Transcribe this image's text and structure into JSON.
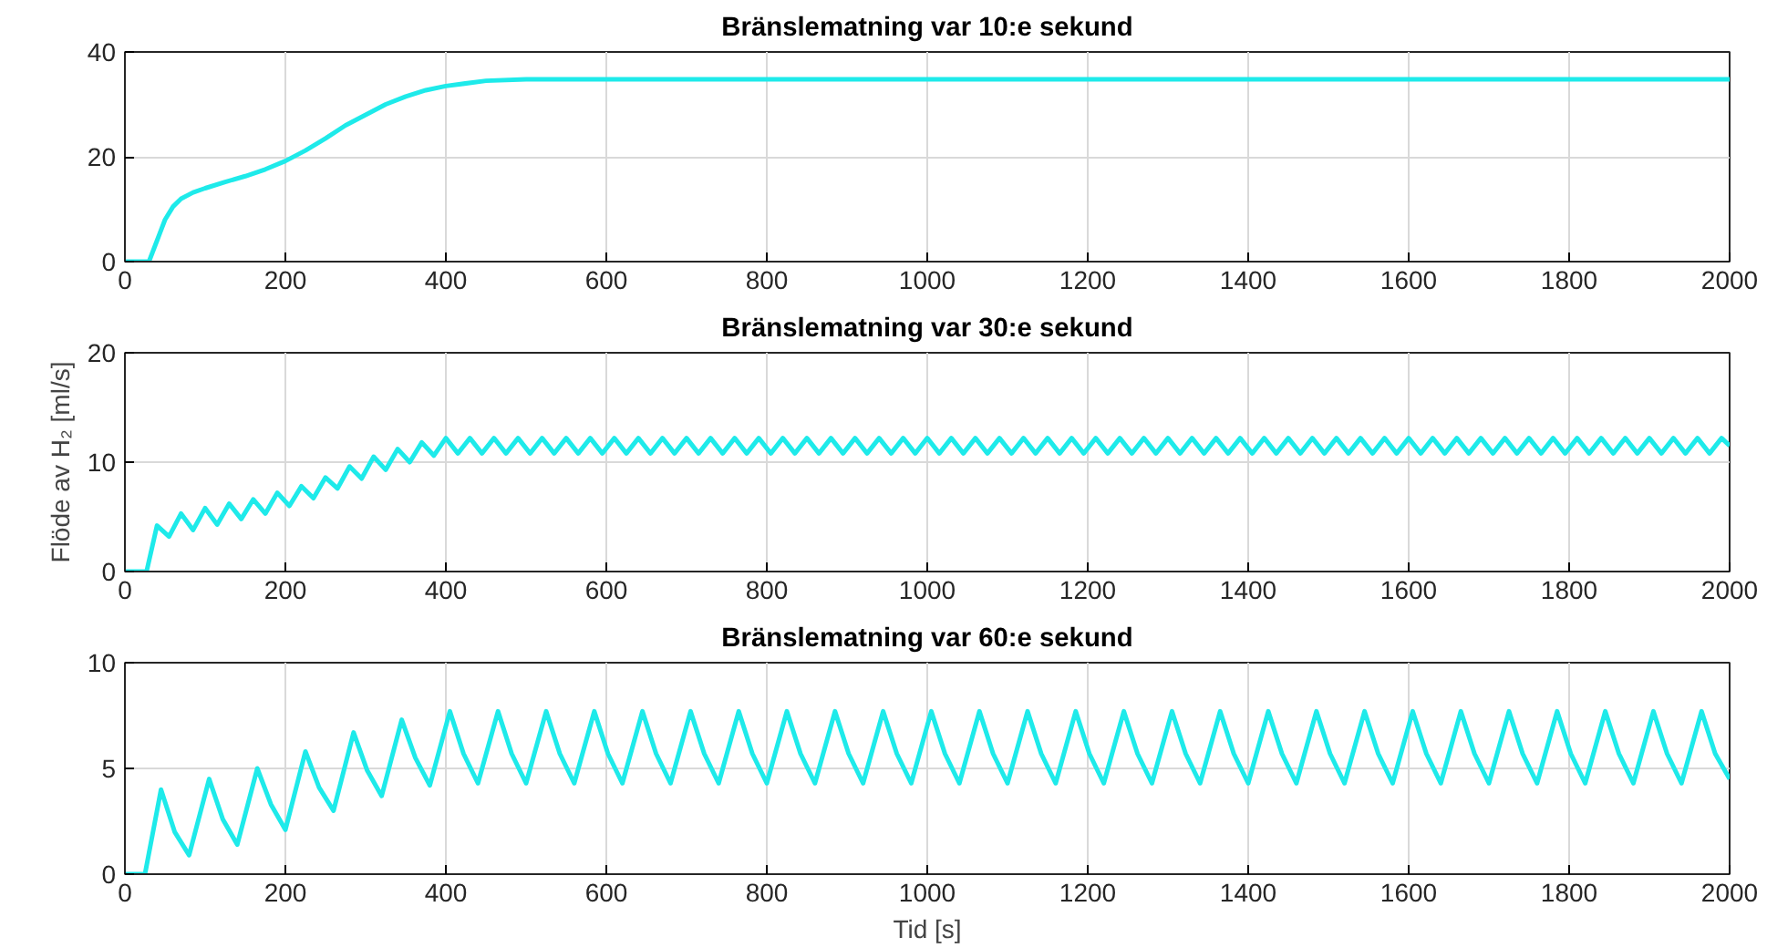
{
  "chart_data": [
    {
      "type": "line",
      "title": "Bränslematning var 10:e sekund",
      "xlim": [
        0,
        2000
      ],
      "ylim": [
        0,
        40
      ],
      "xticks": [
        0,
        200,
        400,
        600,
        800,
        1000,
        1200,
        1400,
        1600,
        1800,
        2000
      ],
      "yticks": [
        0,
        20,
        40
      ],
      "grid": true,
      "series": [
        {
          "color": "#1eeaea",
          "x": [
            0,
            30,
            40,
            50,
            60,
            70,
            85,
            100,
            125,
            150,
            175,
            200,
            225,
            250,
            275,
            300,
            325,
            350,
            375,
            400,
            450,
            500,
            600,
            800,
            1000,
            1200,
            1400,
            1600,
            1800,
            2000
          ],
          "values": [
            0,
            0,
            4,
            8,
            10.5,
            12,
            13.2,
            14,
            15.2,
            16.3,
            17.6,
            19.2,
            21.2,
            23.5,
            26,
            28,
            30,
            31.5,
            32.7,
            33.5,
            34.5,
            34.8,
            34.8,
            34.8,
            34.8,
            34.8,
            34.8,
            34.8,
            34.8,
            34.8
          ]
        }
      ]
    },
    {
      "type": "line",
      "title": "Bränslematning var 30:e sekund",
      "ylabel": "Flöde av H₂ [ml/s]",
      "xlim": [
        0,
        2000
      ],
      "ylim": [
        0,
        20
      ],
      "xticks": [
        0,
        200,
        400,
        600,
        800,
        1000,
        1200,
        1400,
        1600,
        1800,
        2000
      ],
      "yticks": [
        0,
        10,
        20
      ],
      "grid": true,
      "series": [
        {
          "color": "#1eeaea",
          "x": [
            0,
            27,
            40,
            55,
            70,
            85,
            100,
            115,
            130,
            145,
            160,
            175,
            190,
            205,
            220,
            235,
            250,
            265,
            280,
            295,
            310,
            325,
            340,
            355,
            370,
            385,
            400,
            415,
            430,
            445,
            460,
            475,
            490,
            505,
            520,
            535,
            550,
            565,
            580,
            595,
            610,
            625,
            640,
            655,
            670,
            685,
            700,
            715,
            730,
            745,
            760,
            775,
            790,
            805,
            820,
            835,
            850,
            865,
            880,
            895,
            910,
            925,
            940,
            955,
            970,
            985,
            1000,
            1015,
            1030,
            1045,
            1060,
            1075,
            1090,
            1105,
            1120,
            1135,
            1150,
            1165,
            1180,
            1195,
            1210,
            1225,
            1240,
            1255,
            1270,
            1285,
            1300,
            1315,
            1330,
            1345,
            1360,
            1375,
            1390,
            1405,
            1420,
            1435,
            1450,
            1465,
            1480,
            1495,
            1510,
            1525,
            1540,
            1555,
            1570,
            1585,
            1600,
            1615,
            1630,
            1645,
            1660,
            1675,
            1690,
            1705,
            1720,
            1735,
            1750,
            1765,
            1780,
            1795,
            1810,
            1825,
            1840,
            1855,
            1870,
            1885,
            1900,
            1915,
            1930,
            1945,
            1960,
            1975,
            1990,
            2000
          ],
          "values": [
            0,
            0,
            4.2,
            3.2,
            5.3,
            3.8,
            5.8,
            4.3,
            6.2,
            4.8,
            6.6,
            5.3,
            7.2,
            6.0,
            7.8,
            6.7,
            8.6,
            7.6,
            9.6,
            8.5,
            10.5,
            9.3,
            11.2,
            10.0,
            11.8,
            10.6,
            12.2,
            10.8,
            12.2,
            10.8,
            12.2,
            10.8,
            12.2,
            10.8,
            12.2,
            10.8,
            12.2,
            10.8,
            12.2,
            10.8,
            12.2,
            10.8,
            12.2,
            10.8,
            12.2,
            10.8,
            12.2,
            10.8,
            12.2,
            10.8,
            12.2,
            10.8,
            12.2,
            10.8,
            12.2,
            10.8,
            12.2,
            10.8,
            12.2,
            10.8,
            12.2,
            10.8,
            12.2,
            10.8,
            12.2,
            10.8,
            12.2,
            10.8,
            12.2,
            10.8,
            12.2,
            10.8,
            12.2,
            10.8,
            12.2,
            10.8,
            12.2,
            10.8,
            12.2,
            10.8,
            12.2,
            10.8,
            12.2,
            10.8,
            12.2,
            10.8,
            12.2,
            10.8,
            12.2,
            10.8,
            12.2,
            10.8,
            12.2,
            10.8,
            12.2,
            10.8,
            12.2,
            10.8,
            12.2,
            10.8,
            12.2,
            10.8,
            12.2,
            10.8,
            12.2,
            10.8,
            12.2,
            10.8,
            12.2,
            10.8,
            12.2,
            10.8,
            12.2,
            10.8,
            12.2,
            10.8,
            12.2,
            10.8,
            12.2,
            10.8,
            12.2,
            10.8,
            12.2,
            10.8,
            12.2,
            10.8,
            12.2,
            10.8,
            12.2,
            10.8,
            12.2,
            10.8,
            12.2,
            11.5
          ]
        }
      ]
    },
    {
      "type": "line",
      "title": "Bränslematning var 60:e sekund",
      "xlabel": "Tid [s]",
      "xlim": [
        0,
        2000
      ],
      "ylim": [
        0,
        10
      ],
      "xticks": [
        0,
        200,
        400,
        600,
        800,
        1000,
        1200,
        1400,
        1600,
        1800,
        2000
      ],
      "yticks": [
        0,
        5,
        10
      ],
      "grid": true,
      "series": [
        {
          "color": "#1eeaea",
          "x": [
            0,
            25,
            45,
            62,
            80,
            105,
            122,
            140,
            165,
            182,
            200,
            225,
            242,
            260,
            285,
            302,
            320,
            345,
            362,
            380,
            405,
            422,
            440,
            465,
            482,
            500,
            525,
            542,
            560,
            585,
            602,
            620,
            645,
            662,
            680,
            705,
            722,
            740,
            765,
            782,
            800,
            825,
            842,
            860,
            885,
            902,
            920,
            945,
            962,
            980,
            1005,
            1022,
            1040,
            1065,
            1082,
            1100,
            1125,
            1142,
            1160,
            1185,
            1202,
            1220,
            1245,
            1262,
            1280,
            1305,
            1322,
            1340,
            1365,
            1382,
            1400,
            1425,
            1442,
            1460,
            1485,
            1502,
            1520,
            1545,
            1562,
            1580,
            1605,
            1622,
            1640,
            1665,
            1682,
            1700,
            1725,
            1742,
            1760,
            1785,
            1802,
            1820,
            1845,
            1862,
            1880,
            1905,
            1922,
            1940,
            1965,
            1982,
            2000
          ],
          "values": [
            0,
            0,
            4.0,
            2.0,
            0.9,
            4.5,
            2.6,
            1.4,
            5.0,
            3.3,
            2.1,
            5.8,
            4.1,
            3.0,
            6.7,
            4.9,
            3.7,
            7.3,
            5.5,
            4.2,
            7.7,
            5.7,
            4.3,
            7.7,
            5.7,
            4.3,
            7.7,
            5.7,
            4.3,
            7.7,
            5.7,
            4.3,
            7.7,
            5.7,
            4.3,
            7.7,
            5.7,
            4.3,
            7.7,
            5.7,
            4.3,
            7.7,
            5.7,
            4.3,
            7.7,
            5.7,
            4.3,
            7.7,
            5.7,
            4.3,
            7.7,
            5.7,
            4.3,
            7.7,
            5.7,
            4.3,
            7.7,
            5.7,
            4.3,
            7.7,
            5.7,
            4.3,
            7.7,
            5.7,
            4.3,
            7.7,
            5.7,
            4.3,
            7.7,
            5.7,
            4.3,
            7.7,
            5.7,
            4.3,
            7.7,
            5.7,
            4.3,
            7.7,
            5.7,
            4.3,
            7.7,
            5.7,
            4.3,
            7.7,
            5.7,
            4.3,
            7.7,
            5.7,
            4.3,
            7.7,
            5.7,
            4.3,
            7.7,
            5.7,
            4.3,
            7.7,
            5.7,
            4.3,
            7.7,
            5.7,
            4.5
          ]
        }
      ]
    }
  ]
}
